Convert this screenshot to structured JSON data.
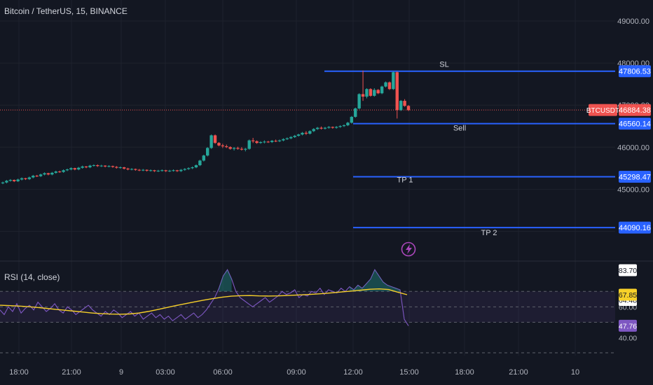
{
  "header": {
    "title": "Bitcoin / TetherUS, 15, BINANCE"
  },
  "rsi": {
    "title": "RSI (14, close)",
    "tick_labels": [
      "83.70",
      "67.85",
      "64.48",
      "60.00",
      "47.76",
      "40.00"
    ],
    "badges": {
      "rsi_value": "47.76",
      "ma_value": "67.85",
      "upper": "83.70",
      "mid": "64.48"
    }
  },
  "axes": {
    "price_ticks": [
      "49000.00",
      "48000.00",
      "47000.00",
      "46000.00",
      "45000.00"
    ],
    "time_ticks": [
      "18:00",
      "21:00",
      "9",
      "03:00",
      "06:00",
      "09:00",
      "12:00",
      "15:00",
      "18:00",
      "21:00",
      "10"
    ]
  },
  "levels": [
    {
      "id": "sl",
      "label": "SL",
      "price": "47806.53",
      "value": 47806.53
    },
    {
      "id": "sell",
      "label": "Sell",
      "price": "46560.14",
      "value": 46560.14
    },
    {
      "id": "tp1",
      "label": "TP 1",
      "price": "45298.47",
      "value": 45298.47
    },
    {
      "id": "tp2",
      "label": "TP 2",
      "price": "44090.16",
      "value": 44090.16
    }
  ],
  "current_price": {
    "symbol": "BTCUSDT",
    "price": "46884.38",
    "value": 46884.38
  },
  "colors": {
    "background": "#131722",
    "up": "#26a69a",
    "down": "#ef5350",
    "level": "#2962ff",
    "rsi": "#7e57c2",
    "rsi_ma": "#f7d029",
    "flash": "#ab47bc"
  },
  "icons": {
    "flash": "lightning-icon"
  },
  "chart_data": {
    "type": "candlestick",
    "x_unit": "15-minute bars",
    "price_range": [
      44000,
      49000
    ],
    "candles": [
      [
        45142,
        45182,
        45121,
        45162
      ],
      [
        45162,
        45222,
        45141,
        45202
      ],
      [
        45202,
        45242,
        45181,
        45222
      ],
      [
        45222,
        45232,
        45171,
        45192
      ],
      [
        45192,
        45252,
        45172,
        45232
      ],
      [
        45232,
        45282,
        45211,
        45262
      ],
      [
        45262,
        45272,
        45221,
        45242
      ],
      [
        45242,
        45302,
        45221,
        45282
      ],
      [
        45282,
        45342,
        45261,
        45322
      ],
      [
        45322,
        45342,
        45291,
        45312
      ],
      [
        45312,
        45372,
        45292,
        45352
      ],
      [
        45352,
        45402,
        45331,
        45382
      ],
      [
        45382,
        45392,
        45331,
        45352
      ],
      [
        45352,
        45412,
        45332,
        45392
      ],
      [
        45392,
        45442,
        45371,
        45422
      ],
      [
        45422,
        45442,
        45391,
        45412
      ],
      [
        45412,
        45472,
        45392,
        45452
      ],
      [
        45452,
        45492,
        45431,
        45472
      ],
      [
        45472,
        45522,
        45451,
        45502
      ],
      [
        45502,
        45512,
        45451,
        45472
      ],
      [
        45472,
        45532,
        45452,
        45512
      ],
      [
        45512,
        45562,
        45491,
        45542
      ],
      [
        45542,
        45552,
        45501,
        45522
      ],
      [
        45522,
        45582,
        45502,
        45562
      ],
      [
        45562,
        45592,
        45541,
        45572
      ],
      [
        45572,
        45592,
        45531,
        45552
      ],
      [
        45552,
        45582,
        45531,
        45562
      ],
      [
        45562,
        45572,
        45521,
        45542
      ],
      [
        45542,
        45572,
        45521,
        45552
      ],
      [
        45552,
        45562,
        45511,
        45532
      ],
      [
        45532,
        45552,
        45491,
        45512
      ],
      [
        45512,
        45542,
        45491,
        45522
      ],
      [
        45522,
        45532,
        45471,
        45492
      ],
      [
        45492,
        45512,
        45451,
        45472
      ],
      [
        45472,
        45502,
        45451,
        45482
      ],
      [
        45482,
        45492,
        45441,
        45462
      ],
      [
        45462,
        45482,
        45431,
        45452
      ],
      [
        45452,
        45482,
        45431,
        45462
      ],
      [
        45462,
        45472,
        45421,
        45442
      ],
      [
        45442,
        45472,
        45421,
        45452
      ],
      [
        45452,
        45462,
        45411,
        45432
      ],
      [
        45432,
        45462,
        45411,
        45442
      ],
      [
        45442,
        45472,
        45421,
        45452
      ],
      [
        45452,
        45462,
        45411,
        45432
      ],
      [
        45432,
        45462,
        45411,
        45442
      ],
      [
        45442,
        45472,
        45421,
        45452
      ],
      [
        45452,
        45462,
        45411,
        45432
      ],
      [
        45432,
        45482,
        45411,
        45462
      ],
      [
        45462,
        45502,
        45441,
        45482
      ],
      [
        45482,
        45522,
        45461,
        45502
      ],
      [
        45502,
        45542,
        45481,
        45522
      ],
      [
        45522,
        45592,
        45501,
        45572
      ],
      [
        45572,
        45702,
        45551,
        45682
      ],
      [
        45682,
        45822,
        45661,
        45802
      ],
      [
        45802,
        46002,
        45781,
        45982
      ],
      [
        45982,
        46302,
        45961,
        46282
      ],
      [
        46282,
        46302,
        46081,
        46102
      ],
      [
        46102,
        46122,
        46021,
        46042
      ],
      [
        46042,
        46082,
        45981,
        46022
      ],
      [
        46022,
        46062,
        45981,
        46002
      ],
      [
        46002,
        46022,
        45941,
        45962
      ],
      [
        45962,
        46002,
        45921,
        45982
      ],
      [
        45982,
        46012,
        45941,
        45962
      ],
      [
        45962,
        46002,
        45921,
        45942
      ],
      [
        45942,
        45982,
        45901,
        45962
      ],
      [
        45962,
        46182,
        45941,
        46162
      ],
      [
        46162,
        46222,
        46101,
        46142
      ],
      [
        46142,
        46162,
        46081,
        46102
      ],
      [
        46102,
        46142,
        46081,
        46122
      ],
      [
        46122,
        46162,
        46091,
        46132
      ],
      [
        46132,
        46152,
        46101,
        46122
      ],
      [
        46122,
        46172,
        46101,
        46152
      ],
      [
        46152,
        46182,
        46121,
        46142
      ],
      [
        46142,
        46182,
        46121,
        46162
      ],
      [
        46162,
        46212,
        46141,
        46192
      ],
      [
        46192,
        46232,
        46171,
        46212
      ],
      [
        46212,
        46262,
        46191,
        46242
      ],
      [
        46242,
        46292,
        46221,
        46272
      ],
      [
        46272,
        46322,
        46251,
        46302
      ],
      [
        46302,
        46362,
        46281,
        46342
      ],
      [
        46342,
        46382,
        46291,
        46322
      ],
      [
        46322,
        46402,
        46301,
        46382
      ],
      [
        46382,
        46452,
        46361,
        46432
      ],
      [
        46432,
        46482,
        46411,
        46462
      ],
      [
        46462,
        46492,
        46421,
        46442
      ],
      [
        46442,
        46482,
        46421,
        46462
      ],
      [
        46462,
        46502,
        46441,
        46482
      ],
      [
        46482,
        46492,
        46441,
        46462
      ],
      [
        46462,
        46502,
        46441,
        46482
      ],
      [
        46482,
        46522,
        46461,
        46502
      ],
      [
        46502,
        46542,
        46481,
        46522
      ],
      [
        46522,
        46602,
        46501,
        46582
      ],
      [
        46582,
        46742,
        46561,
        46722
      ],
      [
        46722,
        46942,
        46701,
        46922
      ],
      [
        46922,
        47282,
        46901,
        47262
      ],
      [
        47262,
        47822,
        47101,
        47202
      ],
      [
        47202,
        47402,
        47161,
        47382
      ],
      [
        47382,
        47402,
        47201,
        47222
      ],
      [
        47222,
        47402,
        47201,
        47362
      ],
      [
        47362,
        47382,
        47261,
        47282
      ],
      [
        47282,
        47462,
        47261,
        47442
      ],
      [
        47442,
        47562,
        47421,
        47542
      ],
      [
        47542,
        47562,
        47361,
        47382
      ],
      [
        47382,
        47802,
        47361,
        47782
      ],
      [
        47782,
        47802,
        46682,
        46882
      ],
      [
        46882,
        47122,
        46862,
        47102
      ],
      [
        47102,
        47142,
        46962,
        46982
      ],
      [
        46982,
        47002,
        46862,
        46882
      ]
    ],
    "rsi_range": [
      20,
      100
    ],
    "rsi": [
      58,
      55,
      60,
      57,
      62,
      56,
      59,
      61,
      58,
      63,
      60,
      57,
      59,
      62,
      58,
      56,
      60,
      58,
      55,
      57,
      59,
      61,
      58,
      56,
      54,
      57,
      55,
      58,
      56,
      53,
      55,
      57,
      54,
      56,
      52,
      54,
      56,
      53,
      55,
      52,
      54,
      51,
      53,
      55,
      52,
      54,
      56,
      53,
      55,
      58,
      62,
      66,
      72,
      80,
      84,
      78,
      70,
      66,
      64,
      62,
      60,
      62,
      64,
      66,
      63,
      65,
      67,
      70,
      68,
      69,
      71,
      66,
      68,
      67,
      70,
      69,
      72,
      68,
      71,
      70,
      69,
      72,
      70,
      73,
      71,
      74,
      72,
      75,
      78,
      84,
      80,
      76,
      74,
      73,
      72,
      71,
      52,
      47.76
    ],
    "rsi_ma": [
      61,
      60.8,
      60.5,
      60.1,
      59.6,
      59,
      58.4,
      57.8,
      57.2,
      56.6,
      56,
      55.6,
      55.3,
      55.2,
      55.4,
      56,
      57,
      58.2,
      59.5,
      60.8,
      62,
      63.2,
      64.3,
      65.3,
      66.2,
      66.9,
      67.2,
      67.3,
      67.1,
      67,
      67.1,
      67.3,
      67.6,
      67.9,
      68.2,
      68.6,
      69.1,
      69.7,
      70.2,
      70.8,
      71.4,
      71.6,
      71.2,
      69.5,
      67.85
    ],
    "rsi_levels": {
      "overbought": 70,
      "middle": 60,
      "oversold": 50
    }
  }
}
